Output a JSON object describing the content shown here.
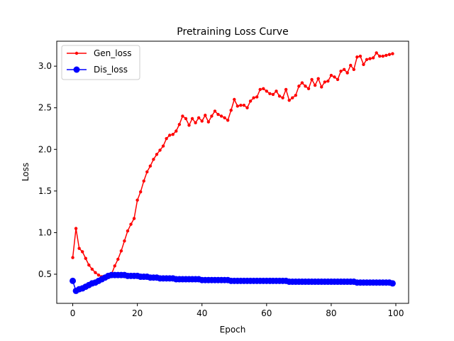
{
  "chart_data": {
    "type": "line",
    "title": "Pretraining Loss Curve",
    "xlabel": "Epoch",
    "ylabel": "Loss",
    "xlim": [
      -4.95,
      103.95
    ],
    "ylim": [
      0.15,
      3.3
    ],
    "xticks": [
      0,
      20,
      40,
      60,
      80,
      100
    ],
    "yticks": [
      0.5,
      1.0,
      1.5,
      2.0,
      2.5,
      3.0
    ],
    "xtick_labels": [
      "0",
      "20",
      "40",
      "60",
      "80",
      "100"
    ],
    "ytick_labels": [
      "0.5",
      "1.0",
      "1.5",
      "2.0",
      "2.5",
      "3.0"
    ],
    "grid": false,
    "legend_position": "upper-left",
    "series": [
      {
        "name": "Gen_loss",
        "color": "#ff0000",
        "marker": "small-dot",
        "x": [
          0,
          1,
          2,
          3,
          4,
          5,
          6,
          7,
          8,
          9,
          10,
          11,
          12,
          13,
          14,
          15,
          16,
          17,
          18,
          19,
          20,
          21,
          22,
          23,
          24,
          25,
          26,
          27,
          28,
          29,
          30,
          31,
          32,
          33,
          34,
          35,
          36,
          37,
          38,
          39,
          40,
          41,
          42,
          43,
          44,
          45,
          46,
          47,
          48,
          49,
          50,
          51,
          52,
          53,
          54,
          55,
          56,
          57,
          58,
          59,
          60,
          61,
          62,
          63,
          64,
          65,
          66,
          67,
          68,
          69,
          70,
          71,
          72,
          73,
          74,
          75,
          76,
          77,
          78,
          79,
          80,
          81,
          82,
          83,
          84,
          85,
          86,
          87,
          88,
          89,
          90,
          91,
          92,
          93,
          94,
          95,
          96,
          97,
          98,
          99
        ],
        "values": [
          0.7,
          1.05,
          0.81,
          0.77,
          0.69,
          0.61,
          0.56,
          0.52,
          0.49,
          0.47,
          0.46,
          0.46,
          0.5,
          0.6,
          0.68,
          0.78,
          0.9,
          1.02,
          1.1,
          1.17,
          1.39,
          1.49,
          1.62,
          1.73,
          1.8,
          1.88,
          1.94,
          1.99,
          2.04,
          2.13,
          2.17,
          2.18,
          2.22,
          2.3,
          2.4,
          2.37,
          2.29,
          2.37,
          2.32,
          2.38,
          2.34,
          2.41,
          2.33,
          2.4,
          2.46,
          2.42,
          2.4,
          2.38,
          2.35,
          2.47,
          2.6,
          2.52,
          2.53,
          2.53,
          2.5,
          2.58,
          2.62,
          2.63,
          2.72,
          2.73,
          2.7,
          2.67,
          2.66,
          2.7,
          2.64,
          2.62,
          2.72,
          2.59,
          2.62,
          2.65,
          2.76,
          2.8,
          2.76,
          2.73,
          2.84,
          2.77,
          2.85,
          2.75,
          2.81,
          2.82,
          2.89,
          2.87,
          2.84,
          2.94,
          2.96,
          2.92,
          3.01,
          2.96,
          3.11,
          3.12,
          3.02,
          3.08,
          3.09,
          3.1,
          3.16,
          3.12,
          3.12,
          3.13,
          3.14,
          3.15
        ]
      },
      {
        "name": "Dis_loss",
        "color": "#0000ff",
        "marker": "large-dot",
        "x": [
          0,
          1,
          2,
          3,
          4,
          5,
          6,
          7,
          8,
          9,
          10,
          11,
          12,
          13,
          14,
          15,
          16,
          17,
          18,
          19,
          20,
          21,
          22,
          23,
          24,
          25,
          26,
          27,
          28,
          29,
          30,
          31,
          32,
          33,
          34,
          35,
          36,
          37,
          38,
          39,
          40,
          41,
          42,
          43,
          44,
          45,
          46,
          47,
          48,
          49,
          50,
          51,
          52,
          53,
          54,
          55,
          56,
          57,
          58,
          59,
          60,
          61,
          62,
          63,
          64,
          65,
          66,
          67,
          68,
          69,
          70,
          71,
          72,
          73,
          74,
          75,
          76,
          77,
          78,
          79,
          80,
          81,
          82,
          83,
          84,
          85,
          86,
          87,
          88,
          89,
          90,
          91,
          92,
          93,
          94,
          95,
          96,
          97,
          98,
          99
        ],
        "values": [
          0.42,
          0.3,
          0.32,
          0.33,
          0.35,
          0.37,
          0.39,
          0.4,
          0.42,
          0.44,
          0.46,
          0.48,
          0.49,
          0.49,
          0.49,
          0.49,
          0.49,
          0.48,
          0.48,
          0.48,
          0.48,
          0.47,
          0.47,
          0.47,
          0.46,
          0.46,
          0.46,
          0.45,
          0.45,
          0.45,
          0.45,
          0.45,
          0.44,
          0.44,
          0.44,
          0.44,
          0.44,
          0.44,
          0.44,
          0.44,
          0.43,
          0.43,
          0.43,
          0.43,
          0.43,
          0.43,
          0.43,
          0.43,
          0.43,
          0.42,
          0.42,
          0.42,
          0.42,
          0.42,
          0.42,
          0.42,
          0.42,
          0.42,
          0.42,
          0.42,
          0.42,
          0.42,
          0.42,
          0.42,
          0.42,
          0.42,
          0.42,
          0.41,
          0.41,
          0.41,
          0.41,
          0.41,
          0.41,
          0.41,
          0.41,
          0.41,
          0.41,
          0.41,
          0.41,
          0.41,
          0.41,
          0.41,
          0.41,
          0.41,
          0.41,
          0.41,
          0.41,
          0.41,
          0.4,
          0.4,
          0.4,
          0.4,
          0.4,
          0.4,
          0.4,
          0.4,
          0.4,
          0.4,
          0.4,
          0.39
        ]
      }
    ]
  }
}
